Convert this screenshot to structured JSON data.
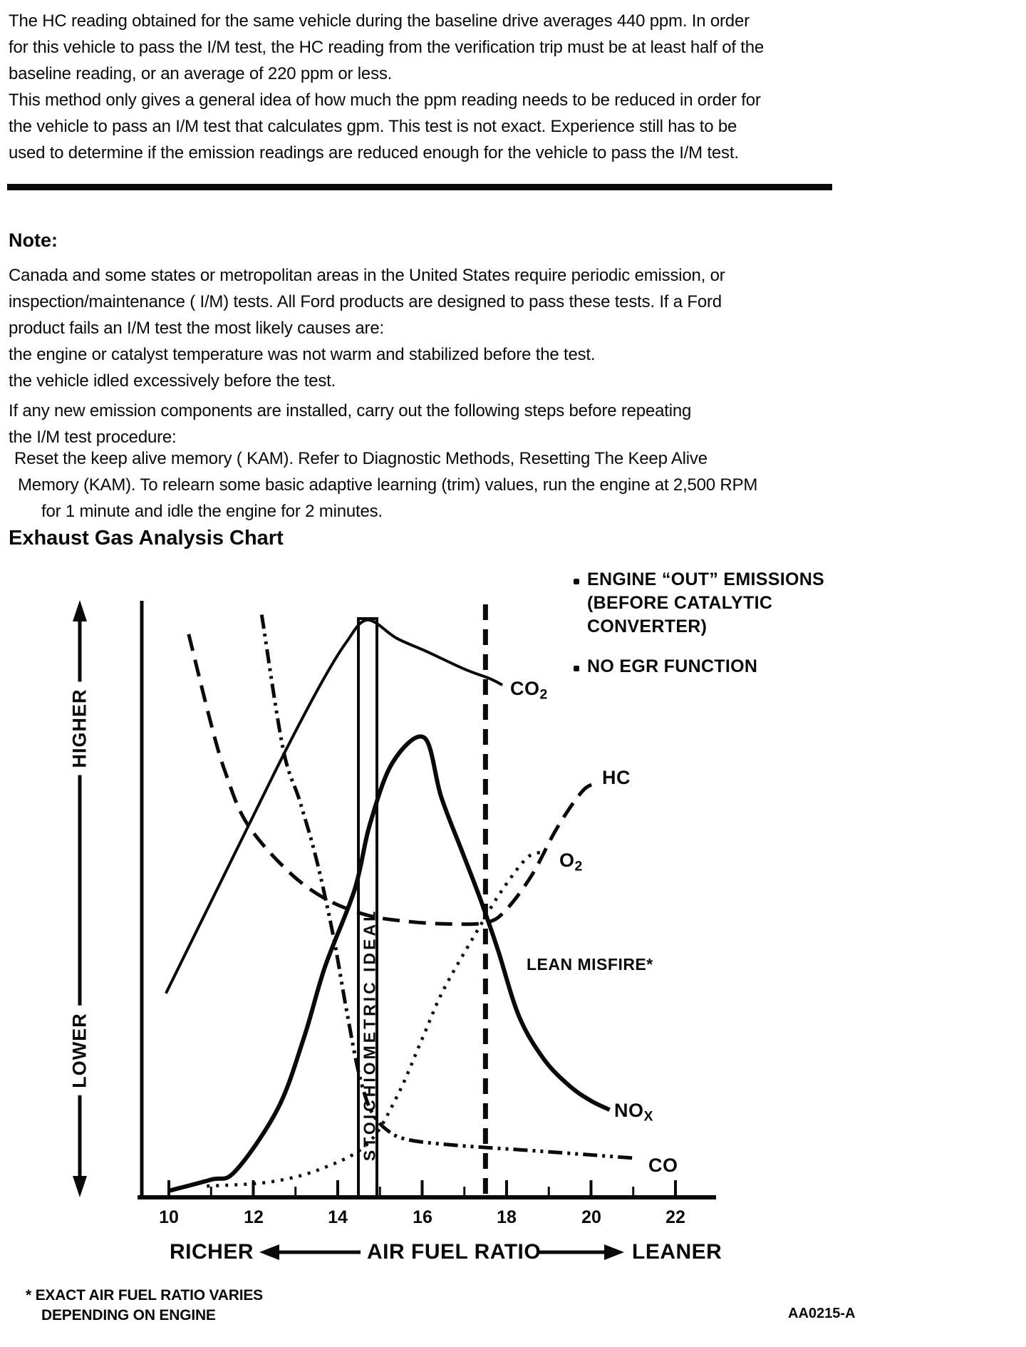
{
  "intro": {
    "lines": [
      "The HC reading obtained for the same vehicle during the baseline drive averages 440 ppm. In order",
      "for this vehicle to pass the I/M test, the HC reading from the verification trip must be at least half of the",
      "baseline reading, or an average of 220 ppm or less.",
      "This method only gives a general idea of how much the ppm reading needs to be reduced in order for",
      "the vehicle to pass an I/M test that calculates gpm. This test is not exact. Experience still has to be",
      "used to determine if the emission readings are reduced enough for the vehicle to pass the I/M test."
    ]
  },
  "note": {
    "heading": "Note:",
    "lines": [
      "Canada and some states or metropolitan areas in the United States require periodic emission, or",
      "inspection/maintenance ( I/M) tests. All Ford products are designed to pass these tests. If a Ford",
      "product fails an I/M test the most likely causes are:",
      "the engine or catalyst temperature was not warm and stabilized before the test.",
      "the vehicle idled excessively before the test.",
      "If any new emission components are installed, carry out the following steps before repeating",
      "the I/M test procedure:",
      "Reset the keep alive memory ( KAM). Refer to Diagnostic Methods, Resetting The Keep Alive",
      "Memory (KAM). To relearn some basic adaptive learning (trim) values, run the engine at 2,500 RPM",
      "for 1 minute and idle the engine for 2 minutes."
    ]
  },
  "chart_data": {
    "type": "line",
    "title": "Exhaust Gas Analysis Chart",
    "legend": {
      "bullet": "•",
      "lines": [
        "ENGINE “OUT” EMISSIONS",
        "(BEFORE CATALYTIC",
        "CONVERTER)",
        "NO EGR FUNCTION"
      ]
    },
    "x_axis": {
      "label": "AIR FUEL RATIO",
      "richer": "RICHER",
      "leaner": "LEANER",
      "range": [
        10,
        23
      ],
      "tick_labels": [
        "10",
        "12",
        "14",
        "16",
        "18",
        "20",
        "22"
      ],
      "minor_tick_step": 1
    },
    "y_axis": {
      "higher": "HIGHER",
      "lower": "LOWER",
      "range": [
        0,
        1
      ],
      "meaning": "relative exhaust gas concentration"
    },
    "annotations": {
      "stoichiometric": {
        "air_fuel_ratio": 14.7,
        "label": "STOICHIOMETRIC IDEAL"
      },
      "lean_misfire": {
        "air_fuel_ratio": 17.5,
        "label": "LEAN MISFIRE*"
      }
    },
    "series": [
      {
        "name": "CO2",
        "label": {
          "base": "CO",
          "sub": "2"
        },
        "style": "solid",
        "points": [
          [
            9.93,
            0.345
          ],
          [
            11.0,
            0.5
          ],
          [
            12.0,
            0.645
          ],
          [
            12.8,
            0.76
          ],
          [
            13.6,
            0.868
          ],
          [
            14.2,
            0.938
          ],
          [
            14.7,
            0.976
          ],
          [
            15.4,
            0.945
          ],
          [
            16.1,
            0.923
          ],
          [
            17.0,
            0.893
          ],
          [
            17.6,
            0.877
          ],
          [
            17.9,
            0.866
          ]
        ]
      },
      {
        "name": "HC",
        "label": {
          "base": "HC",
          "sub": ""
        },
        "style": "long-dash",
        "points": [
          [
            10.47,
            0.952
          ],
          [
            11.0,
            0.8
          ],
          [
            11.35,
            0.716
          ],
          [
            11.85,
            0.632
          ],
          [
            12.8,
            0.553
          ],
          [
            13.7,
            0.505
          ],
          [
            14.7,
            0.477
          ],
          [
            15.7,
            0.466
          ],
          [
            16.7,
            0.462
          ],
          [
            17.55,
            0.465
          ],
          [
            18.0,
            0.487
          ],
          [
            18.6,
            0.545
          ],
          [
            19.2,
            0.625
          ],
          [
            19.8,
            0.687
          ],
          [
            20.15,
            0.7
          ]
        ]
      },
      {
        "name": "CO",
        "label": {
          "base": "CO",
          "sub": ""
        },
        "style": "dash-dot-dot",
        "points": [
          [
            12.2,
            0.985
          ],
          [
            12.7,
            0.76
          ],
          [
            13.1,
            0.67
          ],
          [
            13.5,
            0.57
          ],
          [
            13.9,
            0.44
          ],
          [
            14.2,
            0.32
          ],
          [
            14.5,
            0.21
          ],
          [
            14.8,
            0.145
          ],
          [
            15.2,
            0.112
          ],
          [
            15.7,
            0.097
          ],
          [
            16.8,
            0.088
          ],
          [
            18.8,
            0.078
          ],
          [
            21.07,
            0.066
          ]
        ]
      },
      {
        "name": "O2",
        "label": {
          "base": "O",
          "sub": "2"
        },
        "style": "dotted",
        "points": [
          [
            10.9,
            0.019
          ],
          [
            12.4,
            0.026
          ],
          [
            13.6,
            0.048
          ],
          [
            14.7,
            0.09
          ],
          [
            15.4,
            0.17
          ],
          [
            16.0,
            0.268
          ],
          [
            16.5,
            0.35
          ],
          [
            17.3,
            0.45
          ],
          [
            17.9,
            0.52
          ],
          [
            18.5,
            0.575
          ],
          [
            18.9,
            0.583
          ]
        ]
      },
      {
        "name": "NOx",
        "label": {
          "base": "NO",
          "sub": "X"
        },
        "style": "solid-thick",
        "points": [
          [
            10.0,
            0.011
          ],
          [
            11.0,
            0.03
          ],
          [
            11.57,
            0.044
          ],
          [
            12.58,
            0.15
          ],
          [
            13.2,
            0.27
          ],
          [
            13.7,
            0.39
          ],
          [
            14.4,
            0.52
          ],
          [
            14.76,
            0.63
          ],
          [
            15.3,
            0.735
          ],
          [
            16.05,
            0.777
          ],
          [
            16.45,
            0.677
          ],
          [
            16.95,
            0.584
          ],
          [
            17.4,
            0.5
          ],
          [
            17.8,
            0.417
          ],
          [
            18.3,
            0.305
          ],
          [
            18.89,
            0.233
          ],
          [
            19.48,
            0.189
          ],
          [
            19.98,
            0.164
          ],
          [
            20.44,
            0.148
          ]
        ]
      }
    ],
    "footnote": [
      "* EXACT AIR FUEL RATIO VARIES",
      "DEPENDING ON ENGINE"
    ],
    "figure_code": "AA0215-A"
  }
}
